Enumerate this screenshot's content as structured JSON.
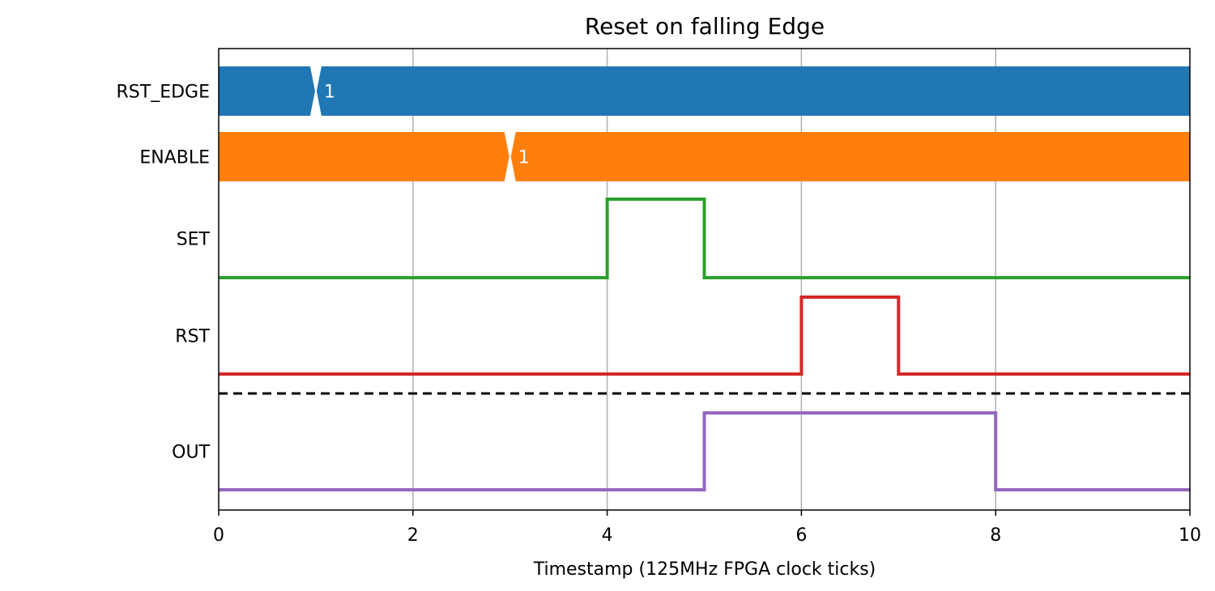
{
  "chart_data": {
    "type": "line",
    "title": "Reset on falling Edge",
    "xlabel": "Timestamp (125MHz FPGA clock ticks)",
    "ylabel": "",
    "xlim": [
      0,
      10
    ],
    "xticks": [
      0,
      2,
      4,
      6,
      8,
      10
    ],
    "xtick_labels": [
      "0",
      "2",
      "4",
      "6",
      "8",
      "10"
    ],
    "grid": "vertical at x ticks",
    "separator": "dashed line between RST and OUT",
    "series": [
      {
        "name": "RST_EDGE",
        "kind": "bus",
        "color": "#1f77b4",
        "segments": [
          {
            "start": 0,
            "end": 1,
            "label": ""
          },
          {
            "start": 1,
            "end": 10,
            "label": "1"
          }
        ]
      },
      {
        "name": "ENABLE",
        "kind": "bus",
        "color": "#ff7f0e",
        "segments": [
          {
            "start": 0,
            "end": 3,
            "label": ""
          },
          {
            "start": 3,
            "end": 10,
            "label": "1"
          }
        ]
      },
      {
        "name": "SET",
        "kind": "digital",
        "color": "#2ca02c",
        "x": [
          0,
          4,
          5,
          10
        ],
        "values": [
          0,
          1,
          0,
          0
        ]
      },
      {
        "name": "RST",
        "kind": "digital",
        "color": "#d62728",
        "x": [
          0,
          6,
          7,
          10
        ],
        "values": [
          0,
          1,
          0,
          0
        ]
      },
      {
        "name": "OUT",
        "kind": "digital",
        "color": "#9467bd",
        "x": [
          0,
          5,
          8,
          10
        ],
        "values": [
          0,
          1,
          0,
          0
        ]
      }
    ]
  }
}
